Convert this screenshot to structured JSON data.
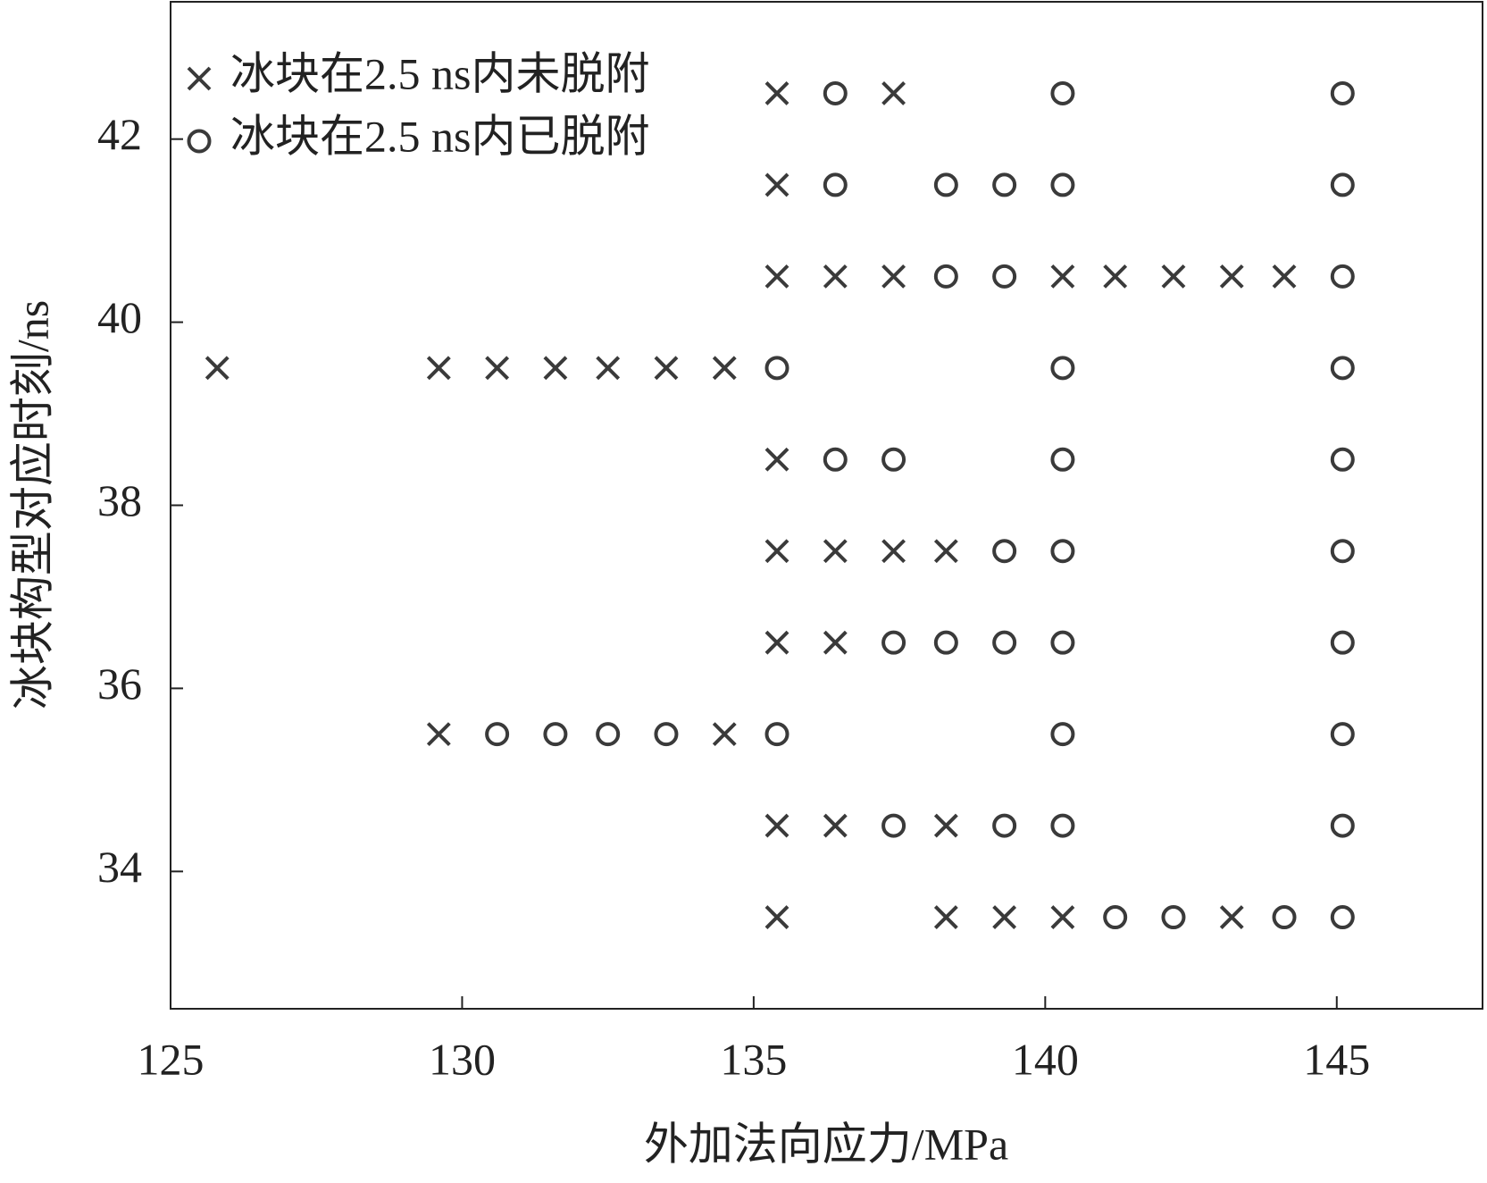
{
  "chart_data": {
    "type": "scatter",
    "xlabel": "外加法向应力/MPa",
    "ylabel": "冰块构型对应时刻/ns",
    "xlim": [
      125,
      147.5
    ],
    "ylim": [
      32.5,
      43.5
    ],
    "xticks": [
      125,
      130,
      135,
      140,
      145
    ],
    "yticks": [
      34,
      36,
      38,
      40,
      42
    ],
    "legend": "upper left",
    "series": [
      {
        "name": "冰块在2.5 ns内未脱附",
        "marker": "x",
        "color": "#3a3a3a",
        "x": [
          135.4,
          137.4,
          135.4,
          135.4,
          136.4,
          137.4,
          140.3,
          141.2,
          142.2,
          143.2,
          144.1,
          125.8,
          129.6,
          130.6,
          131.6,
          132.5,
          133.5,
          134.5,
          135.4,
          135.4,
          136.4,
          137.4,
          138.3,
          135.4,
          136.4,
          129.6,
          134.5,
          135.4,
          136.4,
          138.3,
          135.4,
          138.3,
          139.3,
          140.3,
          143.2
        ],
        "y": [
          42.5,
          42.5,
          41.5,
          40.5,
          40.5,
          40.5,
          40.5,
          40.5,
          40.5,
          40.5,
          40.5,
          39.5,
          39.5,
          39.5,
          39.5,
          39.5,
          39.5,
          39.5,
          38.5,
          37.5,
          37.5,
          37.5,
          37.5,
          36.5,
          36.5,
          35.5,
          35.5,
          34.5,
          34.5,
          34.5,
          33.5,
          33.5,
          33.5,
          33.5,
          33.5
        ]
      },
      {
        "name": "冰块在2.5 ns内已脱附",
        "marker": "o",
        "color": "#3a3a3a",
        "x": [
          136.4,
          140.3,
          145.1,
          136.4,
          138.3,
          139.3,
          140.3,
          145.1,
          138.3,
          139.3,
          145.1,
          135.4,
          140.3,
          145.1,
          136.4,
          137.4,
          140.3,
          145.1,
          139.3,
          140.3,
          145.1,
          137.4,
          138.3,
          139.3,
          140.3,
          145.1,
          130.6,
          131.6,
          132.5,
          133.5,
          135.4,
          140.3,
          145.1,
          137.4,
          139.3,
          140.3,
          145.1,
          141.2,
          142.2,
          144.1,
          145.1
        ],
        "y": [
          42.5,
          42.5,
          42.5,
          41.5,
          41.5,
          41.5,
          41.5,
          41.5,
          40.5,
          40.5,
          40.5,
          39.5,
          39.5,
          39.5,
          38.5,
          38.5,
          38.5,
          38.5,
          37.5,
          37.5,
          37.5,
          36.5,
          36.5,
          36.5,
          36.5,
          36.5,
          35.5,
          35.5,
          35.5,
          35.5,
          35.5,
          35.5,
          35.5,
          34.5,
          34.5,
          34.5,
          34.5,
          33.5,
          33.5,
          33.5,
          33.5
        ]
      }
    ]
  }
}
